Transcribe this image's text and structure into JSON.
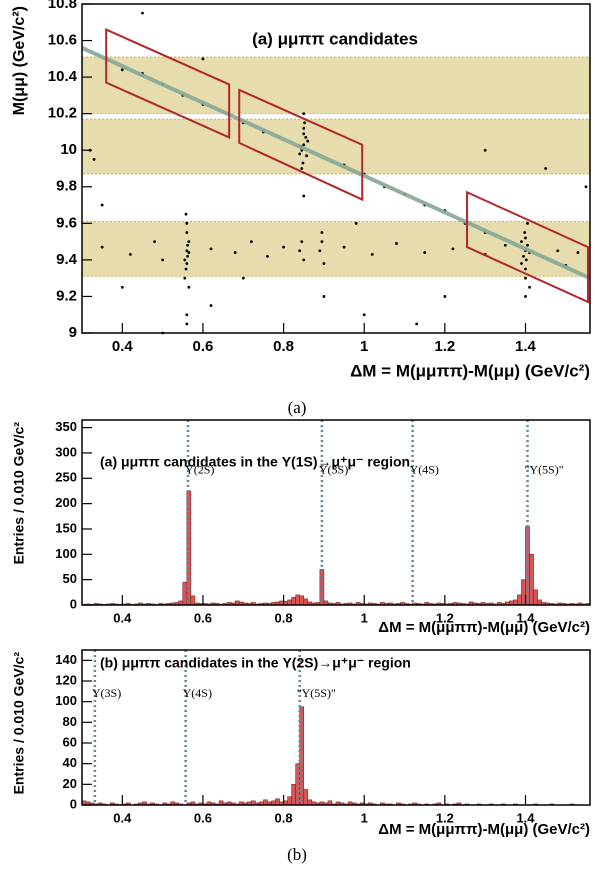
{
  "chart_data": [
    {
      "type": "scatter",
      "title": "(a) μμππ candidates",
      "x_label": "ΔM = M(μμππ)-M(μμ) (GeV/c²)",
      "y_label": "M(μμ) (GeV/c²)",
      "xlim": [
        0.3,
        1.56
      ],
      "ylim": [
        9,
        10.8
      ],
      "xticks": [
        0.4,
        0.6,
        0.8,
        1,
        1.2,
        1.4
      ],
      "yticks": [
        9,
        9.2,
        9.4,
        9.6,
        9.8,
        10,
        10.2,
        10.4,
        10.6,
        10.8
      ],
      "color": "#000000",
      "band_color": "#e6dcae",
      "region_color": "#b3262a",
      "fit_color": "#86a896",
      "bands": [
        [
          9.31,
          9.61
        ],
        [
          9.87,
          10.17
        ],
        [
          10.2,
          10.51
        ]
      ],
      "fit_line": {
        "x": [
          0.3,
          1.56
        ],
        "y": [
          10.56,
          9.3
        ]
      },
      "regions": [
        {
          "x": [
            0.36,
            0.36,
            0.665,
            0.665
          ],
          "y": [
            10.66,
            10.37,
            10.07,
            10.36
          ]
        },
        {
          "x": [
            0.69,
            0.69,
            0.995,
            0.995
          ],
          "y": [
            10.33,
            10.04,
            9.73,
            10.03
          ]
        },
        {
          "x": [
            1.255,
            1.255,
            1.555,
            1.555
          ],
          "y": [
            9.77,
            9.47,
            9.17,
            9.47
          ]
        }
      ],
      "x": [
        0.56,
        0.555,
        0.565,
        0.56,
        0.558,
        0.562,
        0.56,
        0.555,
        0.565,
        0.56,
        0.56,
        0.558,
        0.562,
        0.56,
        0.565,
        0.85,
        0.845,
        0.855,
        0.85,
        0.84,
        0.86,
        0.848,
        0.852,
        0.85,
        0.843,
        0.857,
        0.85,
        0.845,
        1.4,
        1.395,
        1.405,
        1.4,
        1.39,
        1.41,
        1.4,
        1.398,
        1.402,
        1.4,
        1.41,
        1.39,
        1.4,
        1.405,
        0.35,
        0.42,
        0.48,
        0.5,
        0.62,
        0.68,
        0.72,
        0.76,
        0.8,
        0.84,
        0.845,
        0.85,
        0.89,
        0.895,
        0.9,
        0.895,
        0.95,
        1.02,
        1.08,
        1.15,
        1.22,
        1.3,
        1.35,
        1.48,
        1.53,
        0.4,
        0.45,
        0.5,
        0.55,
        0.6,
        0.7,
        0.75,
        0.95,
        1.0,
        1.05,
        1.1,
        1.15,
        1.2,
        1.25,
        1.3,
        1.5,
        0.32,
        0.33,
        0.45,
        0.5,
        0.62,
        0.7,
        0.9,
        1.0,
        1.3,
        1.45,
        0.35,
        0.6,
        0.98,
        1.2,
        1.55,
        0.4,
        0.85,
        1.13
      ],
      "values": [
        9.45,
        9.4,
        9.5,
        9.55,
        9.35,
        9.42,
        9.6,
        9.3,
        9.25,
        9.1,
        9.05,
        9.65,
        9.48,
        9.38,
        9.44,
        10.03,
        10.0,
        10.07,
        10.12,
        9.98,
        10.05,
        9.93,
        10.15,
        10.09,
        10.02,
        9.97,
        10.2,
        9.9,
        9.45,
        9.42,
        9.48,
        9.52,
        9.38,
        9.44,
        9.35,
        9.55,
        9.4,
        9.3,
        9.25,
        9.5,
        9.2,
        9.6,
        9.47,
        9.43,
        9.5,
        9.4,
        9.46,
        9.44,
        9.5,
        9.42,
        9.47,
        9.45,
        9.5,
        9.4,
        9.45,
        9.5,
        9.38,
        9.55,
        9.47,
        9.43,
        9.49,
        9.44,
        9.46,
        9.43,
        9.48,
        9.45,
        9.44,
        10.44,
        10.42,
        10.36,
        10.3,
        10.25,
        10.15,
        10.1,
        9.92,
        9.87,
        9.8,
        9.76,
        9.7,
        9.67,
        9.6,
        9.55,
        9.37,
        10.0,
        9.95,
        10.75,
        9.0,
        9.15,
        9.3,
        9.2,
        9.1,
        10.0,
        9.9,
        9.7,
        10.5,
        9.6,
        9.2,
        9.8,
        9.25,
        9.75,
        9.05
      ]
    },
    {
      "type": "histogram",
      "title": "(a) μμππ candidates in the Υ(1S)→μ⁺μ⁻ region",
      "x_label": "ΔM = M(μμππ)-M(μμ) (GeV/c²)",
      "y_label": "Entries / 0.010 GeV/c²",
      "xlim": [
        0.3,
        1.56
      ],
      "ylim": [
        0,
        365
      ],
      "xticks": [
        0.4,
        0.6,
        0.8,
        1,
        1.2,
        1.4
      ],
      "yticks": [
        0,
        50,
        100,
        150,
        200,
        250,
        300,
        350
      ],
      "color": "#d65656",
      "marker_color": "#5b8aa6",
      "markers": [
        {
          "x": 0.563,
          "label": "Υ(2S)"
        },
        {
          "x": 0.895,
          "label": "Υ(3S)"
        },
        {
          "x": 1.12,
          "label": "Υ(4S)"
        },
        {
          "x": 1.405,
          "label": "\"Υ(5S)\""
        }
      ],
      "bins": [
        0.3,
        0.31,
        0.32,
        0.33,
        0.34,
        0.35,
        0.36,
        0.37,
        0.38,
        0.39,
        0.4,
        0.41,
        0.42,
        0.43,
        0.44,
        0.45,
        0.46,
        0.47,
        0.48,
        0.49,
        0.5,
        0.51,
        0.52,
        0.53,
        0.54,
        0.55,
        0.56,
        0.57,
        0.58,
        0.59,
        0.6,
        0.61,
        0.62,
        0.63,
        0.64,
        0.65,
        0.66,
        0.67,
        0.68,
        0.69,
        0.7,
        0.71,
        0.72,
        0.73,
        0.74,
        0.75,
        0.76,
        0.77,
        0.78,
        0.79,
        0.8,
        0.81,
        0.82,
        0.83,
        0.84,
        0.85,
        0.86,
        0.87,
        0.88,
        0.89,
        0.9,
        0.91,
        0.92,
        0.93,
        0.94,
        0.95,
        0.96,
        0.97,
        0.98,
        0.99,
        1.0,
        1.01,
        1.02,
        1.03,
        1.04,
        1.05,
        1.06,
        1.07,
        1.08,
        1.09,
        1.1,
        1.11,
        1.12,
        1.13,
        1.14,
        1.15,
        1.16,
        1.17,
        1.18,
        1.19,
        1.2,
        1.21,
        1.22,
        1.23,
        1.24,
        1.25,
        1.26,
        1.27,
        1.28,
        1.29,
        1.3,
        1.31,
        1.32,
        1.33,
        1.34,
        1.35,
        1.36,
        1.37,
        1.38,
        1.39,
        1.4,
        1.41,
        1.42,
        1.43,
        1.44,
        1.45,
        1.46,
        1.47,
        1.48,
        1.49,
        1.5,
        1.51,
        1.52,
        1.53,
        1.54,
        1.55,
        1.56
      ],
      "values": [
        1,
        2,
        1,
        3,
        2,
        1,
        2,
        3,
        2,
        1,
        2,
        3,
        1,
        2,
        4,
        2,
        3,
        2,
        1,
        3,
        2,
        3,
        4,
        5,
        8,
        45,
        225,
        18,
        4,
        3,
        3,
        2,
        4,
        3,
        2,
        3,
        5,
        4,
        8,
        6,
        4,
        3,
        5,
        2,
        3,
        4,
        3,
        5,
        6,
        8,
        7,
        10,
        15,
        20,
        18,
        12,
        6,
        4,
        5,
        70,
        8,
        4,
        3,
        5,
        2,
        3,
        4,
        2,
        5,
        3,
        2,
        4,
        3,
        2,
        5,
        3,
        4,
        2,
        3,
        5,
        3,
        2,
        4,
        3,
        2,
        5,
        3,
        2,
        4,
        3,
        2,
        3,
        5,
        4,
        3,
        2,
        6,
        4,
        3,
        5,
        3,
        4,
        2,
        5,
        3,
        6,
        8,
        10,
        20,
        50,
        155,
        100,
        30,
        10,
        5,
        4,
        3,
        2,
        4,
        3,
        2,
        3,
        2,
        4,
        2,
        3
      ]
    },
    {
      "type": "histogram",
      "title": "(b) μμππ candidates in the Υ(2S)→μ⁺μ⁻ region",
      "x_label": "ΔM = M(μμππ)-M(μμ) (GeV/c²)",
      "y_label": "Entries / 0.010 GeV/c²",
      "xlim": [
        0.3,
        1.56
      ],
      "ylim": [
        0,
        150
      ],
      "xticks": [
        0.4,
        0.6,
        0.8,
        1,
        1.2,
        1.4
      ],
      "yticks": [
        0,
        20,
        40,
        60,
        80,
        100,
        120,
        140
      ],
      "color": "#d65656",
      "marker_color": "#5b8aa6",
      "markers": [
        {
          "x": 0.332,
          "label": "Υ(3S)"
        },
        {
          "x": 0.557,
          "label": "Υ(4S)"
        },
        {
          "x": 0.84,
          "label": "\"Υ(5S)\""
        }
      ],
      "bins": [
        0.3,
        0.31,
        0.32,
        0.33,
        0.34,
        0.35,
        0.36,
        0.37,
        0.38,
        0.39,
        0.4,
        0.41,
        0.42,
        0.43,
        0.44,
        0.45,
        0.46,
        0.47,
        0.48,
        0.49,
        0.5,
        0.51,
        0.52,
        0.53,
        0.54,
        0.55,
        0.56,
        0.57,
        0.58,
        0.59,
        0.6,
        0.61,
        0.62,
        0.63,
        0.64,
        0.65,
        0.66,
        0.67,
        0.68,
        0.69,
        0.7,
        0.71,
        0.72,
        0.73,
        0.74,
        0.75,
        0.76,
        0.77,
        0.78,
        0.79,
        0.8,
        0.81,
        0.82,
        0.83,
        0.84,
        0.85,
        0.86,
        0.87,
        0.88,
        0.89,
        0.9,
        0.91,
        0.92,
        0.93,
        0.94,
        0.95,
        0.96,
        0.97,
        0.98,
        0.99,
        1.0,
        1.01,
        1.02,
        1.03,
        1.04,
        1.05,
        1.06,
        1.07,
        1.08,
        1.09,
        1.1,
        1.11,
        1.12,
        1.13,
        1.14,
        1.15,
        1.16,
        1.17,
        1.18,
        1.19,
        1.2,
        1.21,
        1.22,
        1.23,
        1.24,
        1.25,
        1.26,
        1.27,
        1.28,
        1.29,
        1.3,
        1.31,
        1.32,
        1.33,
        1.34,
        1.35,
        1.36,
        1.37,
        1.38,
        1.39,
        1.4,
        1.41,
        1.42,
        1.43,
        1.44,
        1.45,
        1.46,
        1.47,
        1.48,
        1.49,
        1.5,
        1.51,
        1.52,
        1.53,
        1.54,
        1.55,
        1.56
      ],
      "values": [
        4,
        3,
        2,
        1,
        2,
        1,
        0,
        2,
        1,
        0,
        1,
        2,
        0,
        1,
        2,
        3,
        1,
        2,
        1,
        0,
        2,
        1,
        3,
        2,
        1,
        0,
        2,
        3,
        1,
        2,
        1,
        3,
        2,
        1,
        4,
        2,
        3,
        2,
        1,
        3,
        2,
        3,
        4,
        2,
        3,
        5,
        3,
        4,
        6,
        3,
        4,
        8,
        20,
        40,
        95,
        15,
        5,
        3,
        2,
        3,
        2,
        4,
        1,
        3,
        2,
        1,
        3,
        2,
        1,
        2,
        1,
        2,
        1,
        0,
        2,
        1,
        1,
        0,
        2,
        1,
        0,
        1,
        2,
        1,
        0,
        1,
        0,
        1,
        2,
        0,
        1,
        0,
        1,
        2,
        0,
        1,
        0,
        0,
        1,
        0,
        0,
        1,
        0,
        0,
        1,
        0,
        0,
        1,
        0,
        0,
        0,
        0,
        1,
        0,
        0,
        0,
        1,
        0,
        0,
        0,
        0,
        1,
        0,
        0,
        0,
        0
      ]
    }
  ],
  "captions": [
    "(a)",
    "(b)"
  ]
}
